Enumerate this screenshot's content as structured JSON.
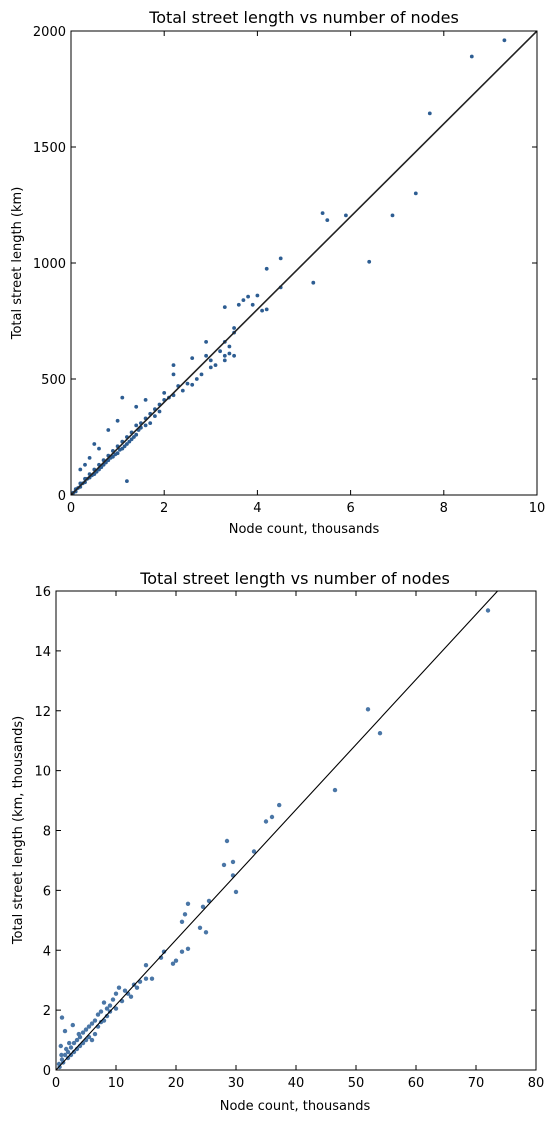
{
  "chart_data": [
    {
      "type": "scatter",
      "title": "Total street length vs number of nodes",
      "xlabel": "Node count, thousands",
      "ylabel": "Total street length (km)",
      "xlim": [
        0,
        10
      ],
      "ylim": [
        0,
        2000
      ],
      "xticks": [
        0,
        2,
        4,
        6,
        8,
        10
      ],
      "yticks": [
        0,
        500,
        1000,
        1500,
        2000
      ],
      "grid": false,
      "fit_line": {
        "x": [
          0,
          10
        ],
        "y": [
          0,
          2000
        ]
      },
      "point_color": "#2d5d92",
      "line_color": "#222222",
      "series": [
        {
          "points": [
            [
              9.3,
              1960
            ],
            [
              8.6,
              1890
            ],
            [
              7.7,
              1645
            ],
            [
              7.4,
              1300
            ],
            [
              6.9,
              1205
            ],
            [
              6.4,
              1005
            ],
            [
              5.9,
              1205
            ],
            [
              5.5,
              1185
            ],
            [
              5.4,
              1215
            ],
            [
              5.2,
              915
            ],
            [
              4.5,
              1020
            ],
            [
              4.5,
              895
            ],
            [
              4.2,
              975
            ],
            [
              4.2,
              800
            ],
            [
              4.1,
              795
            ],
            [
              4.0,
              860
            ],
            [
              3.9,
              820
            ],
            [
              3.8,
              855
            ],
            [
              3.7,
              840
            ],
            [
              3.6,
              820
            ],
            [
              3.5,
              720
            ],
            [
              3.5,
              700
            ],
            [
              3.5,
              600
            ],
            [
              3.4,
              640
            ],
            [
              3.4,
              610
            ],
            [
              3.3,
              660
            ],
            [
              3.3,
              600
            ],
            [
              3.2,
              620
            ],
            [
              3.1,
              560
            ],
            [
              3.0,
              550
            ],
            [
              3.0,
              580
            ],
            [
              2.9,
              600
            ],
            [
              2.8,
              520
            ],
            [
              2.7,
              500
            ],
            [
              2.6,
              475
            ],
            [
              2.5,
              480
            ],
            [
              2.4,
              450
            ],
            [
              2.3,
              470
            ],
            [
              2.2,
              430
            ],
            [
              2.2,
              520
            ],
            [
              2.1,
              420
            ],
            [
              2.0,
              410
            ],
            [
              2.0,
              440
            ],
            [
              1.9,
              390
            ],
            [
              1.9,
              360
            ],
            [
              1.8,
              370
            ],
            [
              1.8,
              340
            ],
            [
              1.7,
              350
            ],
            [
              1.7,
              310
            ],
            [
              1.6,
              330
            ],
            [
              1.6,
              300
            ],
            [
              1.5,
              310
            ],
            [
              1.5,
              290
            ],
            [
              1.45,
              280
            ],
            [
              1.4,
              300
            ],
            [
              1.4,
              260
            ],
            [
              1.35,
              250
            ],
            [
              1.3,
              270
            ],
            [
              1.3,
              240
            ],
            [
              1.25,
              230
            ],
            [
              1.2,
              250
            ],
            [
              1.2,
              220
            ],
            [
              1.15,
              210
            ],
            [
              1.1,
              230
            ],
            [
              1.1,
              200
            ],
            [
              1.05,
              195
            ],
            [
              1.0,
              210
            ],
            [
              1.0,
              180
            ],
            [
              0.95,
              175
            ],
            [
              0.9,
              190
            ],
            [
              0.9,
              165
            ],
            [
              0.85,
              160
            ],
            [
              0.8,
              170
            ],
            [
              0.8,
              150
            ],
            [
              0.75,
              140
            ],
            [
              0.7,
              150
            ],
            [
              0.7,
              130
            ],
            [
              0.65,
              120
            ],
            [
              0.6,
              130
            ],
            [
              0.6,
              110
            ],
            [
              0.55,
              100
            ],
            [
              0.5,
              110
            ],
            [
              0.5,
              90
            ],
            [
              0.45,
              85
            ],
            [
              0.4,
              90
            ],
            [
              0.4,
              75
            ],
            [
              0.35,
              70
            ],
            [
              0.3,
              70
            ],
            [
              0.3,
              55
            ],
            [
              0.25,
              50
            ],
            [
              0.2,
              50
            ],
            [
              0.2,
              35
            ],
            [
              0.15,
              30
            ],
            [
              0.1,
              25
            ],
            [
              0.1,
              15
            ],
            [
              0.05,
              10
            ],
            [
              1.2,
              60
            ],
            [
              1.1,
              420
            ],
            [
              1.6,
              410
            ],
            [
              2.2,
              560
            ],
            [
              3.3,
              810
            ],
            [
              3.3,
              580
            ],
            [
              2.6,
              590
            ],
            [
              2.9,
              660
            ],
            [
              0.6,
              200
            ],
            [
              0.4,
              160
            ],
            [
              0.3,
              130
            ],
            [
              0.2,
              110
            ],
            [
              0.5,
              220
            ],
            [
              0.8,
              280
            ],
            [
              1.0,
              320
            ],
            [
              1.4,
              380
            ]
          ]
        }
      ]
    },
    {
      "type": "scatter",
      "title": "Total street length vs number of nodes",
      "xlabel": "Node count, thousands",
      "ylabel": "Total street length (km, thousands)",
      "xlim": [
        0,
        80
      ],
      "ylim": [
        0,
        16
      ],
      "xticks": [
        0,
        10,
        20,
        30,
        40,
        50,
        60,
        70,
        80
      ],
      "yticks": [
        0,
        2,
        4,
        6,
        8,
        10,
        12,
        14,
        16
      ],
      "grid": false,
      "fit_line": {
        "x": [
          0,
          73.6
        ],
        "y": [
          0,
          16
        ]
      },
      "point_color": "#4a76a6",
      "line_color": "#000000",
      "series": [
        {
          "points": [
            [
              72,
              15.35
            ],
            [
              52,
              12.05
            ],
            [
              54,
              11.25
            ],
            [
              46.5,
              9.35
            ],
            [
              37.2,
              8.85
            ],
            [
              36,
              8.45
            ],
            [
              35,
              8.3
            ],
            [
              33,
              7.3
            ],
            [
              28.5,
              7.65
            ],
            [
              28,
              6.85
            ],
            [
              29.5,
              6.95
            ],
            [
              29.5,
              6.5
            ],
            [
              30,
              5.95
            ],
            [
              25.5,
              5.65
            ],
            [
              24.5,
              5.45
            ],
            [
              22,
              5.55
            ],
            [
              21.5,
              5.2
            ],
            [
              25,
              4.6
            ],
            [
              24,
              4.75
            ],
            [
              21,
              4.95
            ],
            [
              22,
              4.05
            ],
            [
              21,
              3.95
            ],
            [
              20,
              3.65
            ],
            [
              19.5,
              3.55
            ],
            [
              18,
              3.95
            ],
            [
              17.5,
              3.75
            ],
            [
              15,
              3.5
            ],
            [
              16,
              3.05
            ],
            [
              15,
              3.05
            ],
            [
              14,
              2.95
            ],
            [
              13.5,
              2.75
            ],
            [
              13,
              2.85
            ],
            [
              12,
              2.55
            ],
            [
              11.5,
              2.65
            ],
            [
              10.5,
              2.75
            ],
            [
              10,
              2.55
            ],
            [
              9.5,
              2.35
            ],
            [
              9,
              2.15
            ],
            [
              8.5,
              2.05
            ],
            [
              8,
              2.25
            ],
            [
              7.5,
              1.95
            ],
            [
              7,
              1.85
            ],
            [
              6.5,
              1.65
            ],
            [
              6,
              1.55
            ],
            [
              5.5,
              1.45
            ],
            [
              5,
              1.35
            ],
            [
              4.5,
              1.25
            ],
            [
              4,
              1.1
            ],
            [
              3.5,
              1.0
            ],
            [
              3,
              0.9
            ],
            [
              2.5,
              0.75
            ],
            [
              2,
              0.6
            ],
            [
              1.5,
              0.5
            ],
            [
              1,
              0.35
            ],
            [
              0.5,
              0.2
            ],
            [
              1,
              1.75
            ],
            [
              2.8,
              1.5
            ],
            [
              1.5,
              1.3
            ],
            [
              0.8,
              0.8
            ],
            [
              6,
              1.0
            ],
            [
              7,
              1.45
            ],
            [
              8,
              1.65
            ],
            [
              9,
              1.95
            ],
            [
              10,
              2.05
            ],
            [
              11,
              2.3
            ],
            [
              12.5,
              2.45
            ],
            [
              4,
              0.8
            ],
            [
              5,
              1.0
            ],
            [
              3,
              0.6
            ],
            [
              2,
              0.4
            ],
            [
              1.2,
              0.25
            ],
            [
              6.5,
              1.2
            ],
            [
              5.5,
              1.1
            ],
            [
              4.5,
              0.9
            ],
            [
              3.5,
              0.7
            ],
            [
              2.5,
              0.5
            ],
            [
              7.5,
              1.6
            ],
            [
              8.5,
              1.8
            ],
            [
              0.6,
              0.1
            ],
            [
              3.8,
              1.2
            ],
            [
              2.2,
              0.9
            ],
            [
              1.7,
              0.7
            ],
            [
              0.9,
              0.5
            ]
          ]
        }
      ]
    }
  ]
}
